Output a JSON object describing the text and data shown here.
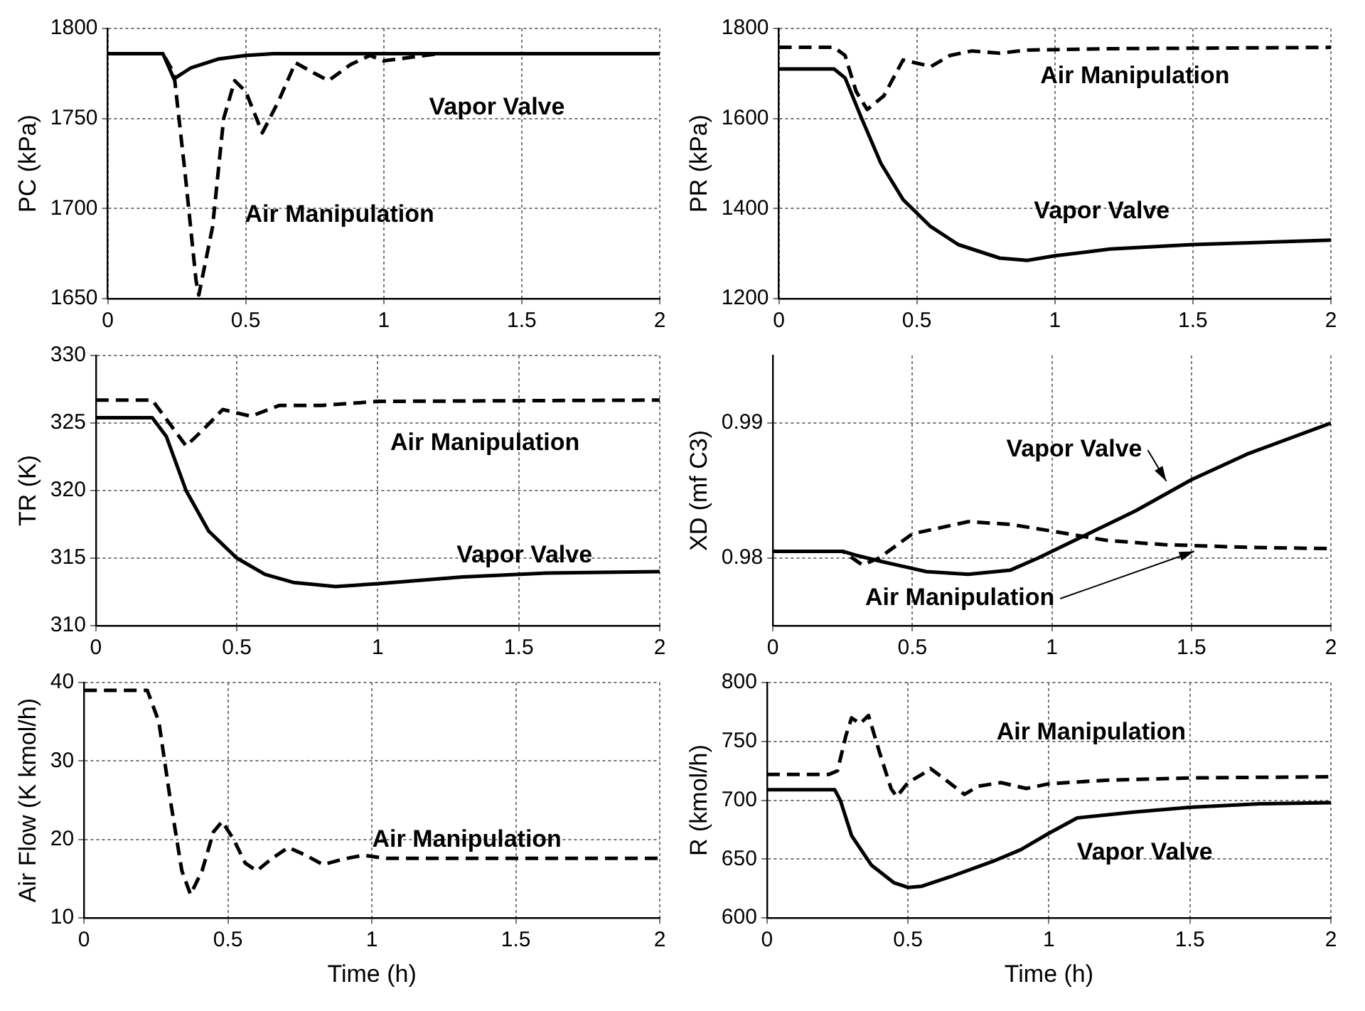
{
  "chart_data": [
    {
      "type": "line",
      "ylabel": "PC (kPa)",
      "xlim": [
        0,
        2
      ],
      "xticks": [
        0,
        0.5,
        1,
        1.5,
        2
      ],
      "ylim": [
        1650,
        1800
      ],
      "yticks": [
        1650,
        1700,
        1750,
        1800
      ],
      "grid": true,
      "series": [
        {
          "name": "Air Manipulation",
          "color": "#000000",
          "line_style": "dashed",
          "x": [
            0,
            0.2,
            0.24,
            0.28,
            0.32,
            0.33,
            0.38,
            0.42,
            0.46,
            0.5,
            0.56,
            0.62,
            0.68,
            0.75,
            0.8,
            0.88,
            0.95,
            1.0,
            1.1,
            1.2,
            2
          ],
          "values": [
            1786,
            1786,
            1775,
            1720,
            1660,
            1652,
            1690,
            1750,
            1771,
            1765,
            1742,
            1760,
            1781,
            1775,
            1771,
            1780,
            1785,
            1782,
            1784,
            1786,
            1786
          ]
        },
        {
          "name": "Vapor Valve",
          "color": "#000000",
          "line_style": "solid",
          "x": [
            0,
            0.2,
            0.24,
            0.3,
            0.4,
            0.5,
            0.6,
            2
          ],
          "values": [
            1786,
            1786,
            1772,
            1778,
            1783,
            1785,
            1786,
            1786
          ]
        }
      ]
    },
    {
      "type": "line",
      "ylabel": "PR (kPa)",
      "xlim": [
        0,
        2
      ],
      "xticks": [
        0,
        0.5,
        1,
        1.5,
        2
      ],
      "ylim": [
        1200,
        1800
      ],
      "yticks": [
        1200,
        1400,
        1600,
        1800
      ],
      "grid": true,
      "series": [
        {
          "name": "Air Manipulation",
          "color": "#000000",
          "line_style": "dashed",
          "x": [
            0,
            0.2,
            0.24,
            0.28,
            0.32,
            0.38,
            0.45,
            0.52,
            0.55,
            0.62,
            0.7,
            0.8,
            0.9,
            1.2,
            2
          ],
          "values": [
            1758,
            1758,
            1740,
            1660,
            1620,
            1650,
            1730,
            1720,
            1715,
            1740,
            1750,
            1745,
            1752,
            1755,
            1758
          ]
        },
        {
          "name": "Vapor Valve",
          "color": "#000000",
          "line_style": "solid",
          "x": [
            0,
            0.2,
            0.24,
            0.3,
            0.37,
            0.45,
            0.55,
            0.65,
            0.8,
            0.9,
            1.0,
            1.2,
            1.5,
            2
          ],
          "values": [
            1710,
            1710,
            1690,
            1600,
            1500,
            1420,
            1360,
            1320,
            1290,
            1285,
            1295,
            1310,
            1320,
            1330
          ]
        }
      ]
    },
    {
      "type": "line",
      "ylabel": "TR (K)",
      "xlim": [
        0,
        2
      ],
      "xticks": [
        0,
        0.5,
        1,
        1.5,
        2
      ],
      "ylim": [
        310,
        330
      ],
      "yticks": [
        310,
        315,
        320,
        325,
        330
      ],
      "grid": true,
      "series": [
        {
          "name": "Air Manipulation",
          "color": "#000000",
          "line_style": "dashed",
          "x": [
            0,
            0.2,
            0.26,
            0.32,
            0.38,
            0.45,
            0.55,
            0.65,
            0.8,
            1.0,
            2
          ],
          "values": [
            326.7,
            326.7,
            325,
            323.3,
            324.5,
            326,
            325.5,
            326.3,
            326.3,
            326.6,
            326.7
          ]
        },
        {
          "name": "Vapor Valve",
          "color": "#000000",
          "line_style": "solid",
          "x": [
            0,
            0.2,
            0.25,
            0.32,
            0.4,
            0.5,
            0.6,
            0.7,
            0.85,
            1.0,
            1.3,
            1.6,
            2
          ],
          "values": [
            325.4,
            325.4,
            324,
            320,
            317,
            315,
            313.8,
            313.2,
            312.9,
            313.1,
            313.6,
            313.9,
            314
          ]
        }
      ]
    },
    {
      "type": "line",
      "ylabel": "XD (mf C3)",
      "xlim": [
        0,
        2
      ],
      "xticks": [
        0,
        0.5,
        1,
        1.5,
        2
      ],
      "ylim": [
        0.975,
        0.995
      ],
      "yticks": [
        0.98,
        0.99
      ],
      "grid": true,
      "series": [
        {
          "name": "Air Manipulation",
          "color": "#000000",
          "line_style": "dashed",
          "x": [
            0,
            0.25,
            0.32,
            0.38,
            0.5,
            0.7,
            0.85,
            1.0,
            1.2,
            1.4,
            1.7,
            2
          ],
          "values": [
            0.9805,
            0.9805,
            0.9795,
            0.98,
            0.9818,
            0.9827,
            0.9825,
            0.982,
            0.9813,
            0.981,
            0.9808,
            0.9807
          ]
        },
        {
          "name": "Vapor Valve",
          "color": "#000000",
          "line_style": "solid",
          "x": [
            0,
            0.25,
            0.3,
            0.4,
            0.55,
            0.7,
            0.85,
            0.95,
            1.1,
            1.3,
            1.5,
            1.7,
            2
          ],
          "values": [
            0.9805,
            0.9805,
            0.9802,
            0.9797,
            0.979,
            0.9788,
            0.9791,
            0.98,
            0.9815,
            0.9835,
            0.9858,
            0.9877,
            0.99
          ]
        }
      ]
    },
    {
      "type": "line",
      "ylabel": "Air Flow (K kmol/h)",
      "xlabel": "Time (h)",
      "xlim": [
        0,
        2
      ],
      "xticks": [
        0,
        0.5,
        1,
        1.5,
        2
      ],
      "ylim": [
        10,
        40
      ],
      "yticks": [
        10,
        20,
        30,
        40
      ],
      "grid": true,
      "series": [
        {
          "name": "Air Manipulation",
          "color": "#000000",
          "line_style": "dashed",
          "x": [
            0,
            0.22,
            0.26,
            0.3,
            0.34,
            0.37,
            0.41,
            0.45,
            0.48,
            0.52,
            0.56,
            0.6,
            0.65,
            0.71,
            0.77,
            0.83,
            0.9,
            0.97,
            1.05,
            2
          ],
          "values": [
            39,
            39,
            35,
            25,
            16,
            13,
            16,
            21,
            22.3,
            20,
            17,
            16,
            17.5,
            19,
            18,
            16.8,
            17.5,
            18,
            17.6,
            17.6
          ]
        }
      ]
    },
    {
      "type": "line",
      "ylabel": "R (kmol/h)",
      "xlabel": "Time (h)",
      "xlim": [
        0,
        2
      ],
      "xticks": [
        0,
        0.5,
        1,
        1.5,
        2
      ],
      "ylim": [
        600,
        800
      ],
      "yticks": [
        600,
        650,
        700,
        750,
        800
      ],
      "grid": true,
      "series": [
        {
          "name": "Air Manipulation",
          "color": "#000000",
          "line_style": "dashed",
          "x": [
            0,
            0.22,
            0.25,
            0.28,
            0.3,
            0.33,
            0.36,
            0.4,
            0.44,
            0.46,
            0.5,
            0.55,
            0.58,
            0.63,
            0.7,
            0.75,
            0.83,
            0.92,
            1.0,
            1.2,
            1.5,
            2
          ],
          "values": [
            722,
            722,
            725,
            755,
            770,
            765,
            772,
            740,
            710,
            703,
            715,
            722,
            727,
            718,
            705,
            712,
            715,
            710,
            714,
            717,
            719,
            720
          ]
        },
        {
          "name": "Vapor Valve",
          "color": "#000000",
          "line_style": "solid",
          "x": [
            0,
            0.24,
            0.26,
            0.3,
            0.37,
            0.45,
            0.5,
            0.55,
            0.65,
            0.8,
            0.9,
            1.0,
            1.1,
            1.3,
            1.5,
            1.75,
            2
          ],
          "values": [
            709,
            709,
            700,
            670,
            645,
            630,
            626,
            627,
            635,
            648,
            658,
            672,
            685,
            690,
            694,
            697,
            698
          ]
        }
      ]
    }
  ]
}
